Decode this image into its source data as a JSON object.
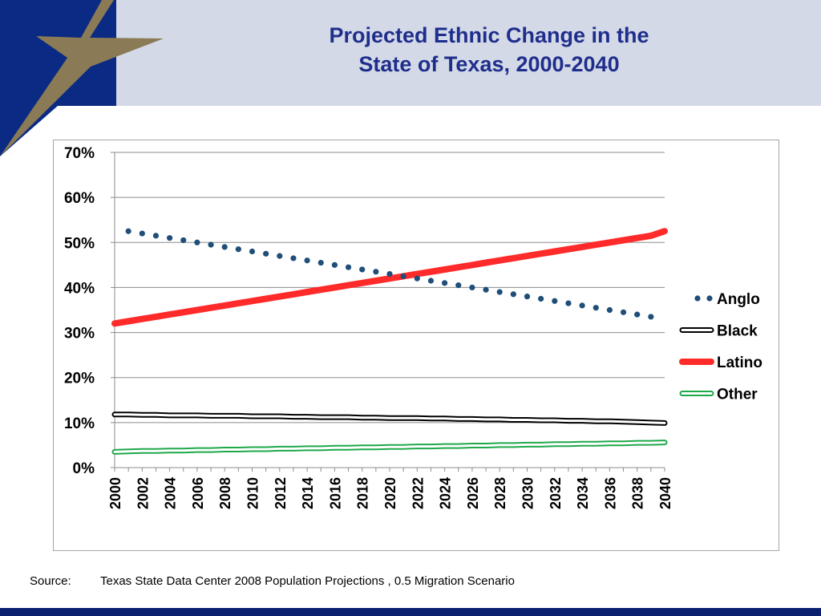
{
  "colors": {
    "header_band": "#d3d9e6",
    "navy": "#0a2a83",
    "gold": "#8a7a55",
    "title": "#1f2e8c",
    "anglo": "#1f4e79",
    "black": "#000000",
    "latino": "#ff2a2a",
    "other": "#1ea84a"
  },
  "header": {
    "title_line1": "Projected Ethnic Change in the",
    "title_line2": "State of Texas, 2000-2040",
    "decor_icon": "star-icon"
  },
  "chart_data": {
    "type": "line",
    "x": [
      2000,
      2001,
      2002,
      2003,
      2004,
      2005,
      2006,
      2007,
      2008,
      2009,
      2010,
      2011,
      2012,
      2013,
      2014,
      2015,
      2016,
      2017,
      2018,
      2019,
      2020,
      2021,
      2022,
      2023,
      2024,
      2025,
      2026,
      2027,
      2028,
      2029,
      2030,
      2031,
      2032,
      2033,
      2034,
      2035,
      2036,
      2037,
      2038,
      2039,
      2040
    ],
    "x_tick_labels": [
      "2000",
      "2002",
      "2004",
      "2006",
      "2008",
      "2010",
      "2012",
      "2014",
      "2016",
      "2018",
      "2020",
      "2022",
      "2024",
      "2026",
      "2028",
      "2030",
      "2032",
      "2034",
      "2036",
      "2038",
      "2040"
    ],
    "y_tick_labels": [
      "0%",
      "10%",
      "20%",
      "30%",
      "40%",
      "50%",
      "60%",
      "70%"
    ],
    "ylim": [
      0,
      0.7
    ],
    "grid": true,
    "legend_position": "right",
    "series": [
      {
        "name": "Anglo",
        "style": "dotted",
        "color": "#1f4e79",
        "values": [
          null,
          0.525,
          0.52,
          0.515,
          0.51,
          0.505,
          0.5,
          0.495,
          0.49,
          0.485,
          0.48,
          0.475,
          0.47,
          0.465,
          0.46,
          0.455,
          0.45,
          0.445,
          0.44,
          0.435,
          0.43,
          0.425,
          0.42,
          0.415,
          0.41,
          0.405,
          0.4,
          0.395,
          0.39,
          0.385,
          0.38,
          0.375,
          0.37,
          0.365,
          0.36,
          0.355,
          0.35,
          0.345,
          0.34,
          0.335,
          null
        ]
      },
      {
        "name": "Black",
        "style": "double",
        "color": "#000000",
        "values": [
          0.118,
          0.118,
          0.117,
          0.117,
          0.116,
          0.116,
          0.116,
          0.115,
          0.115,
          0.115,
          0.114,
          0.114,
          0.114,
          0.113,
          0.113,
          0.112,
          0.112,
          0.112,
          0.111,
          0.111,
          0.11,
          0.11,
          0.11,
          0.109,
          0.109,
          0.108,
          0.108,
          0.107,
          0.107,
          0.106,
          0.106,
          0.105,
          0.105,
          0.104,
          0.104,
          0.103,
          0.103,
          0.102,
          0.101,
          0.1,
          0.099
        ]
      },
      {
        "name": "Latino",
        "style": "solid",
        "color": "#ff2a2a",
        "values": [
          0.32,
          0.325,
          0.33,
          0.335,
          0.34,
          0.345,
          0.35,
          0.355,
          0.36,
          0.365,
          0.37,
          0.375,
          0.38,
          0.385,
          0.39,
          0.395,
          0.4,
          0.405,
          0.41,
          0.415,
          0.42,
          0.425,
          0.43,
          0.435,
          0.44,
          0.445,
          0.45,
          0.455,
          0.46,
          0.465,
          0.47,
          0.475,
          0.48,
          0.485,
          0.49,
          0.495,
          0.5,
          0.505,
          0.51,
          0.515,
          0.525
        ]
      },
      {
        "name": "Other",
        "style": "double",
        "color": "#1ea84a",
        "values": [
          0.035,
          0.036,
          0.037,
          0.037,
          0.038,
          0.038,
          0.039,
          0.039,
          0.04,
          0.04,
          0.041,
          0.041,
          0.042,
          0.042,
          0.043,
          0.043,
          0.044,
          0.044,
          0.045,
          0.045,
          0.046,
          0.046,
          0.047,
          0.047,
          0.048,
          0.048,
          0.049,
          0.049,
          0.05,
          0.05,
          0.051,
          0.051,
          0.052,
          0.052,
          0.053,
          0.053,
          0.054,
          0.054,
          0.055,
          0.055,
          0.056
        ]
      }
    ]
  },
  "source": {
    "label": "Source:",
    "text": "Texas State Data Center 2008 Population Projections , 0.5 Migration Scenario"
  }
}
